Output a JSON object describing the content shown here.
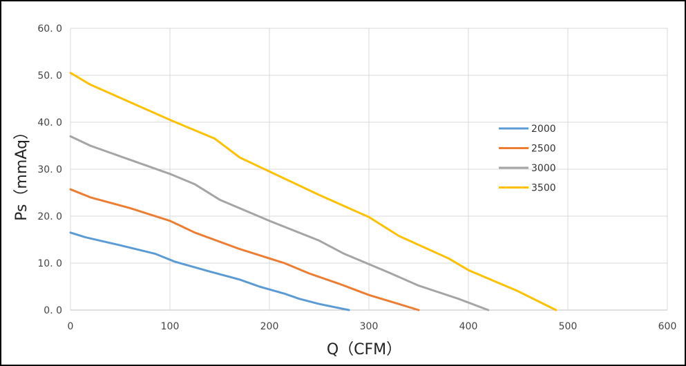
{
  "chart_data": {
    "type": "line",
    "title": "",
    "xlabel": "Q（CFM）",
    "ylabel": "Ps（mmAq）",
    "xlim": [
      0,
      600
    ],
    "ylim": [
      0,
      60
    ],
    "xticks": [
      "0",
      "100",
      "200",
      "300",
      "400",
      "500",
      "600"
    ],
    "yticks": [
      "0. 0",
      "10. 0",
      "20. 0",
      "30. 0",
      "40. 0",
      "50. 0",
      "60. 0"
    ],
    "grid": true,
    "legend_position": "right",
    "series": [
      {
        "name": "2000",
        "color": "#5B9BD5",
        "points": [
          [
            0,
            16.5
          ],
          [
            15,
            15.5
          ],
          [
            50,
            13.8
          ],
          [
            85,
            12
          ],
          [
            105,
            10.3
          ],
          [
            140,
            8.2
          ],
          [
            170,
            6.5
          ],
          [
            190,
            5
          ],
          [
            215,
            3.5
          ],
          [
            230,
            2.4
          ],
          [
            250,
            1.3
          ],
          [
            280,
            0
          ]
        ]
      },
      {
        "name": "2500",
        "color": "#ED7D31",
        "points": [
          [
            0,
            25.7
          ],
          [
            20,
            24
          ],
          [
            60,
            21.7
          ],
          [
            100,
            19
          ],
          [
            125,
            16.5
          ],
          [
            170,
            13
          ],
          [
            215,
            10
          ],
          [
            240,
            7.8
          ],
          [
            270,
            5.6
          ],
          [
            300,
            3.2
          ],
          [
            325,
            1.6
          ],
          [
            350,
            0
          ]
        ]
      },
      {
        "name": "3000",
        "color": "#A5A5A5",
        "points": [
          [
            0,
            37
          ],
          [
            20,
            35
          ],
          [
            60,
            32
          ],
          [
            100,
            29
          ],
          [
            125,
            26.8
          ],
          [
            150,
            23.5
          ],
          [
            200,
            19
          ],
          [
            250,
            14.8
          ],
          [
            275,
            12
          ],
          [
            320,
            8
          ],
          [
            350,
            5.2
          ],
          [
            390,
            2.4
          ],
          [
            420,
            0
          ]
        ]
      },
      {
        "name": "3500",
        "color": "#FFC000",
        "points": [
          [
            0,
            50.5
          ],
          [
            20,
            48
          ],
          [
            100,
            40.5
          ],
          [
            145,
            36.5
          ],
          [
            170,
            32.5
          ],
          [
            200,
            29.5
          ],
          [
            250,
            24.5
          ],
          [
            300,
            19.8
          ],
          [
            330,
            15.8
          ],
          [
            380,
            11
          ],
          [
            400,
            8.5
          ],
          [
            450,
            4
          ],
          [
            488,
            0
          ]
        ]
      }
    ]
  }
}
